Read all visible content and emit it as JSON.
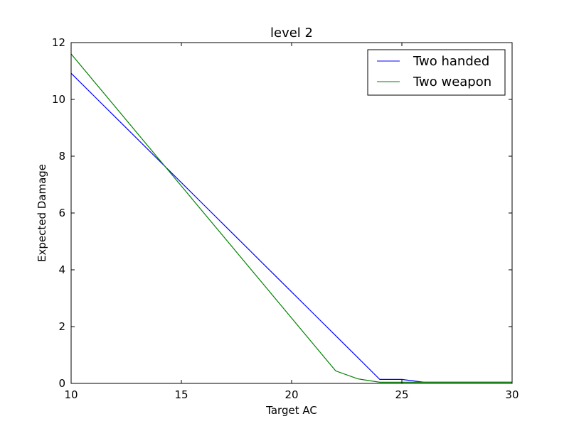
{
  "chart_data": {
    "type": "line",
    "title": "level 2",
    "xlabel": "Target AC",
    "ylabel": "Expected Damage",
    "xlim": [
      10,
      30
    ],
    "ylim": [
      0,
      12
    ],
    "xticks": [
      10,
      15,
      20,
      25,
      30
    ],
    "yticks": [
      0,
      2,
      4,
      6,
      8,
      10,
      12
    ],
    "grid": false,
    "legend_position": "top-right",
    "x": [
      10,
      11,
      12,
      13,
      14,
      15,
      16,
      17,
      18,
      19,
      20,
      21,
      22,
      23,
      24,
      25,
      26,
      27,
      28,
      29,
      30
    ],
    "series": [
      {
        "name": "Two handed",
        "color": "#0000ff",
        "values": [
          10.92,
          10.15,
          9.38,
          8.61,
          7.84,
          7.07,
          6.3,
          5.53,
          4.76,
          3.99,
          3.22,
          2.45,
          1.68,
          0.91,
          0.14,
          0.14,
          0.04,
          0.04,
          0.04,
          0.04,
          0.04
        ]
      },
      {
        "name": "Two weapon",
        "color": "#008000",
        "values": [
          11.6,
          10.67,
          9.74,
          8.81,
          7.88,
          6.95,
          6.02,
          5.09,
          4.16,
          3.23,
          2.3,
          1.37,
          0.44,
          0.16,
          0.04,
          0.04,
          0.04,
          0.04,
          0.04,
          0.04,
          0.04
        ]
      }
    ]
  }
}
